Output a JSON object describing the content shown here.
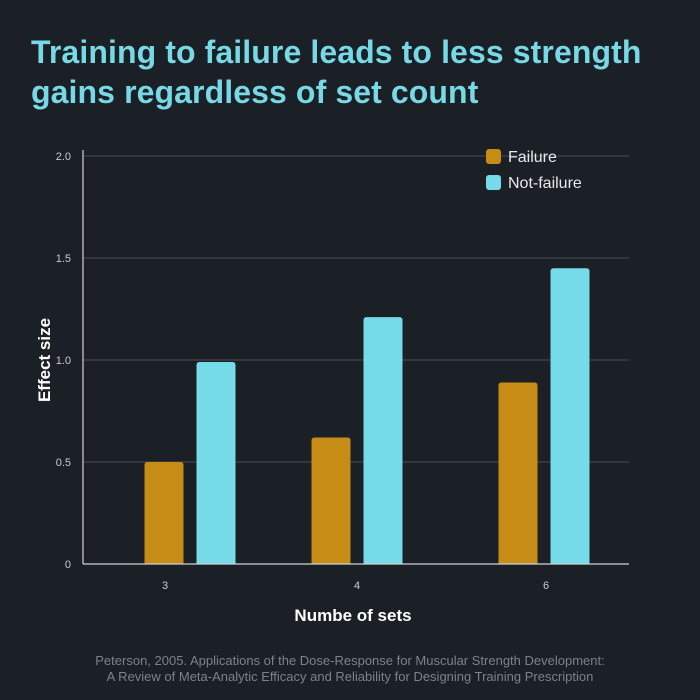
{
  "title": "Training to failure leads to less strength gains regardless of set count",
  "source_line1": "Peterson, 2005. Applications of the Dose-Response for Muscular Strength Development:",
  "source_line2": "A Review of Meta-Analytic Efficacy and Reliability for Designing Training Prescription",
  "colors": {
    "background": "#1b1f26",
    "title": "#77d9e6",
    "failure": "#c68c16",
    "not_failure": "#76dbe9",
    "grid": "#4a4f57",
    "axis": "#d0d3d8"
  },
  "chart_data": {
    "type": "bar",
    "title": "Training to failure leads to less strength gains regardless of set count",
    "xlabel": "Numbe of sets",
    "ylabel": "Effect size",
    "categories": [
      "3",
      "4",
      "6"
    ],
    "series": [
      {
        "name": "Failure",
        "color": "#c68c16",
        "values": [
          0.5,
          0.62,
          0.89
        ]
      },
      {
        "name": "Not-failure",
        "color": "#76dbe9",
        "values": [
          0.99,
          1.21,
          1.45
        ]
      }
    ],
    "ylim": [
      0,
      2.0
    ],
    "yticks": [
      0,
      0.5,
      1.0,
      1.5,
      2.0
    ],
    "ytick_labels": [
      "0",
      "0.5",
      "1.0",
      "1.5",
      "2.0"
    ],
    "grid": true,
    "legend": "top-right"
  }
}
